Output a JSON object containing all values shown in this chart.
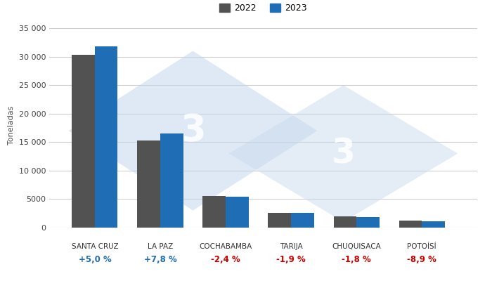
{
  "categories": [
    "SANTA CRUZ",
    "LA PAZ",
    "COCHABAMBA",
    "TARIJA",
    "CHUQUISACA",
    "POTOÍSÍ"
  ],
  "values_2022": [
    30300,
    15300,
    5500,
    2580,
    1920,
    1220
  ],
  "values_2023": [
    31820,
    16490,
    5370,
    2530,
    1885,
    1110
  ],
  "variations": [
    "+5,0 %",
    "+7,8 %",
    "-2,4 %",
    "-1,9 %",
    "-1,8 %",
    "-8,9 %"
  ],
  "var_colors": [
    "#1f6eb5",
    "#1f6eb5",
    "#cc0000",
    "#cc0000",
    "#cc0000",
    "#cc0000"
  ],
  "color_2022": "#525252",
  "color_2023": "#1f6eb5",
  "ylabel": "Toneladas",
  "ylim": [
    0,
    36000
  ],
  "yticks": [
    0,
    5000,
    10000,
    15000,
    20000,
    25000,
    30000,
    35000
  ],
  "ytick_labels": [
    "0",
    "5000",
    "10 000",
    "15 000",
    "20 000",
    "25 000",
    "30 000",
    "35 000"
  ],
  "legend_2022": "2022",
  "legend_2023": "2023",
  "bg_color": "#ffffff",
  "grid_color": "#cccccc",
  "watermark_color": "#c5d8ed",
  "bar_width": 0.35
}
